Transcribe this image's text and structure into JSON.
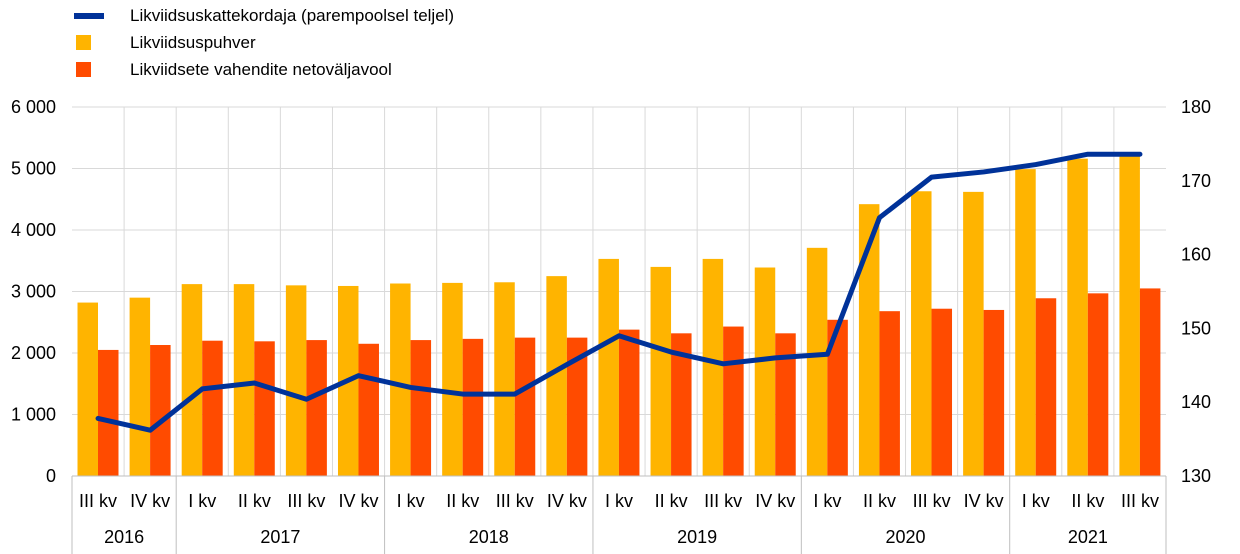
{
  "legend": [
    {
      "label": "Likviidsuskattekordaja (parempoolsel teljel)",
      "kind": "line",
      "color": "#003299"
    },
    {
      "label": "Likviidsuspuhver",
      "kind": "box",
      "color": "#FFB400"
    },
    {
      "label": "Likviidsete vahendite netoväljavool",
      "kind": "box",
      "color": "#FF4B00"
    }
  ],
  "chart_data": {
    "type": "bar",
    "categories": [
      "III kv",
      "IV kv",
      "I kv",
      "II kv",
      "III kv",
      "IV kv",
      "I kv",
      "II kv",
      "III kv",
      "IV kv",
      "I kv",
      "II kv",
      "III kv",
      "IV kv",
      "I kv",
      "II kv",
      "III kv",
      "IV kv",
      "I kv",
      "II kv",
      "III kv"
    ],
    "year_groups": [
      {
        "label": "2016",
        "count": 2
      },
      {
        "label": "2017",
        "count": 4
      },
      {
        "label": "2018",
        "count": 4
      },
      {
        "label": "2019",
        "count": 4
      },
      {
        "label": "2020",
        "count": 4
      },
      {
        "label": "2021",
        "count": 3
      }
    ],
    "series": [
      {
        "name": "Likviidsuspuhver",
        "axis": "left",
        "color": "#FFB400",
        "values": [
          2820,
          2900,
          3120,
          3120,
          3100,
          3090,
          3130,
          3140,
          3150,
          3250,
          3530,
          3400,
          3530,
          3390,
          3710,
          4420,
          4630,
          4620,
          4990,
          5160,
          5250
        ]
      },
      {
        "name": "Likviidsete vahendite netoväljavool",
        "axis": "left",
        "color": "#FF4B00",
        "values": [
          2050,
          2130,
          2200,
          2190,
          2210,
          2150,
          2210,
          2230,
          2250,
          2250,
          2380,
          2320,
          2430,
          2320,
          2540,
          2680,
          2720,
          2700,
          2890,
          2970,
          3050
        ]
      },
      {
        "name": "Likviidsuskattekordaja (parempoolsel teljel)",
        "axis": "right",
        "type": "line",
        "color": "#003299",
        "values": [
          137.8,
          136.2,
          141.8,
          142.6,
          140.4,
          143.6,
          142.0,
          141.1,
          141.1,
          145.1,
          149.0,
          146.8,
          145.2,
          146.0,
          146.5,
          165.0,
          170.5,
          171.2,
          172.2,
          173.6,
          173.6
        ]
      }
    ],
    "yleft": {
      "lim": [
        0,
        6000
      ],
      "ticks": [
        "0",
        "1 000",
        "2 000",
        "3 000",
        "4 000",
        "5 000",
        "6 000"
      ]
    },
    "yright": {
      "lim": [
        130,
        180
      ],
      "ticks": [
        "130",
        "140",
        "150",
        "160",
        "170",
        "180"
      ]
    },
    "grid": true,
    "legend_position": "top-left"
  }
}
